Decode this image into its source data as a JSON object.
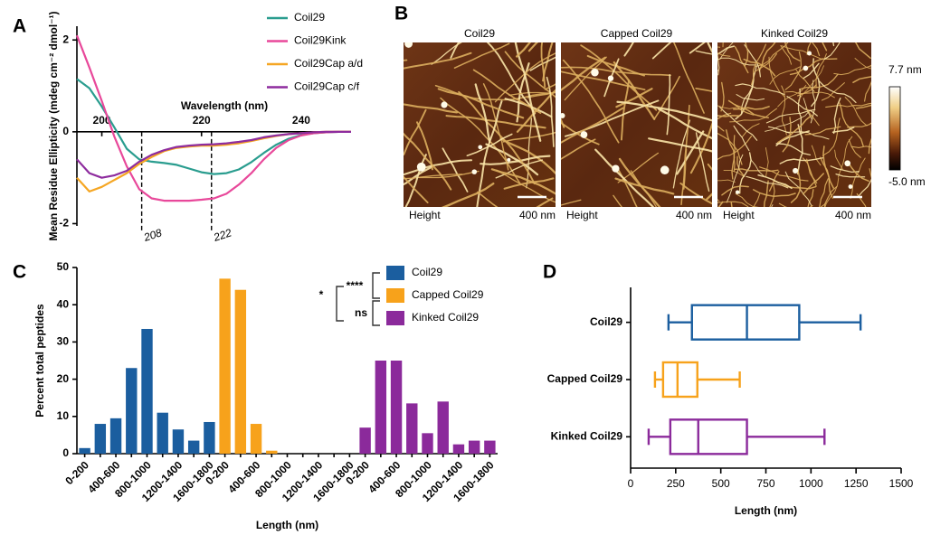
{
  "panels": [
    "A",
    "B",
    "C",
    "D"
  ],
  "chart_data": [
    {
      "type": "line",
      "y_label": "Mean Residue Ellipticity (mdeg cm⁻² dmol⁻¹)",
      "x_label": "Wavelength (nm)",
      "x": [
        195,
        197.5,
        200,
        202.5,
        205,
        207.5,
        210,
        212.5,
        215,
        217.5,
        220,
        222.5,
        225,
        227.5,
        230,
        232.5,
        235,
        237.5,
        240,
        242.5,
        245,
        247.5,
        250
      ],
      "series": [
        {
          "name": "Coil29",
          "color": "#2a9d8f",
          "values": [
            1.15,
            0.95,
            0.55,
            0.1,
            -0.37,
            -0.6,
            -0.65,
            -0.68,
            -0.72,
            -0.8,
            -0.88,
            -0.92,
            -0.9,
            -0.82,
            -0.66,
            -0.46,
            -0.28,
            -0.15,
            -0.07,
            -0.03,
            -0.01,
            0,
            0
          ]
        },
        {
          "name": "Coil29Kink",
          "color": "#e8489a",
          "values": [
            2.1,
            1.4,
            0.67,
            -0.1,
            -0.75,
            -1.25,
            -1.45,
            -1.5,
            -1.5,
            -1.5,
            -1.48,
            -1.45,
            -1.35,
            -1.15,
            -0.9,
            -0.6,
            -0.35,
            -0.18,
            -0.08,
            -0.03,
            -0.01,
            0,
            0
          ]
        },
        {
          "name": "Coil29Cap a/d",
          "color": "#f5a623",
          "values": [
            -1.0,
            -1.3,
            -1.2,
            -1.05,
            -0.9,
            -0.7,
            -0.55,
            -0.42,
            -0.35,
            -0.32,
            -0.3,
            -0.3,
            -0.28,
            -0.25,
            -0.2,
            -0.14,
            -0.09,
            -0.05,
            -0.03,
            -0.01,
            0,
            0,
            0
          ]
        },
        {
          "name": "Coil29Cap c/f",
          "color": "#8e2c9e",
          "values": [
            -0.6,
            -0.9,
            -1.0,
            -0.95,
            -0.85,
            -0.65,
            -0.5,
            -0.4,
            -0.33,
            -0.3,
            -0.28,
            -0.27,
            -0.25,
            -0.22,
            -0.18,
            -0.12,
            -0.08,
            -0.05,
            -0.03,
            -0.01,
            0,
            0,
            0
          ]
        }
      ],
      "xlim": [
        195,
        250
      ],
      "ylim": [
        -2.05,
        2.3
      ],
      "xticks": [
        200,
        220,
        240
      ],
      "yticks": [
        -2,
        0,
        2
      ],
      "vlines": [
        208,
        222
      ]
    },
    {
      "type": "bar",
      "y_label": "Percent total peptides",
      "x_label": "Length (nm)",
      "categories": [
        "0-200",
        null,
        "400-600",
        null,
        "800-1000",
        null,
        "1200-1400",
        null,
        "1600-1800",
        "0-200",
        null,
        "400-600",
        null,
        "800-1000",
        null,
        "1200-1400",
        null,
        "1600-1800",
        "0-200",
        null,
        "400-600",
        null,
        "800-1000",
        null,
        "1200-1400",
        null,
        "1600-1800"
      ],
      "series": [
        {
          "name": "Coil29",
          "color": "#1b5e9f",
          "values": [
            1.5,
            8,
            9.5,
            23,
            33.5,
            11,
            6.5,
            3.5,
            8.5,
            null,
            null,
            null,
            null,
            null,
            null,
            null,
            null,
            null,
            null,
            null,
            null,
            null,
            null,
            null,
            null,
            null,
            null
          ]
        },
        {
          "name": "Capped Coil29",
          "color": "#f7a21b",
          "values": [
            null,
            null,
            null,
            null,
            null,
            null,
            null,
            null,
            null,
            47,
            44,
            8,
            0.8,
            0,
            0,
            0,
            0,
            0,
            null,
            null,
            null,
            null,
            null,
            null,
            null,
            null,
            null
          ]
        },
        {
          "name": "Kinked Coil29",
          "color": "#8b2a9b",
          "values": [
            null,
            null,
            null,
            null,
            null,
            null,
            null,
            null,
            null,
            null,
            null,
            null,
            null,
            null,
            null,
            null,
            null,
            null,
            7,
            25,
            25,
            13.5,
            5.5,
            14,
            2.5,
            3.5,
            3.5
          ]
        }
      ],
      "ylim": [
        0,
        50
      ],
      "yticks": [
        0,
        10,
        20,
        30,
        40,
        50
      ],
      "annotations": [
        "****",
        "*",
        "ns"
      ]
    },
    {
      "type": "boxplot",
      "x_label": "Length (nm)",
      "categories": [
        "Coil29",
        "Capped Coil29",
        "Kinked Coil29"
      ],
      "colors": [
        "#1b5e9f",
        "#f7a21b",
        "#8b2a9b"
      ],
      "boxes": [
        {
          "min": 210,
          "q1": 340,
          "median": 645,
          "q3": 935,
          "max": 1275
        },
        {
          "min": 135,
          "q1": 180,
          "median": 260,
          "q3": 370,
          "max": 605
        },
        {
          "min": 100,
          "q1": 220,
          "median": 375,
          "q3": 645,
          "max": 1075
        }
      ],
      "xlim": [
        0,
        1500
      ],
      "xticks": [
        0,
        250,
        500,
        750,
        1000,
        1250,
        1500
      ]
    }
  ],
  "afm": {
    "images": [
      {
        "title": "Coil29",
        "channel": "Height",
        "scale": "400 nm"
      },
      {
        "title": "Capped Coil29",
        "channel": "Height",
        "scale": "400 nm"
      },
      {
        "title": "Kinked Coil29",
        "channel": "Height",
        "scale": "400 nm"
      }
    ],
    "colorbar": {
      "max": "7.7 nm",
      "min": "-5.0 nm"
    }
  }
}
